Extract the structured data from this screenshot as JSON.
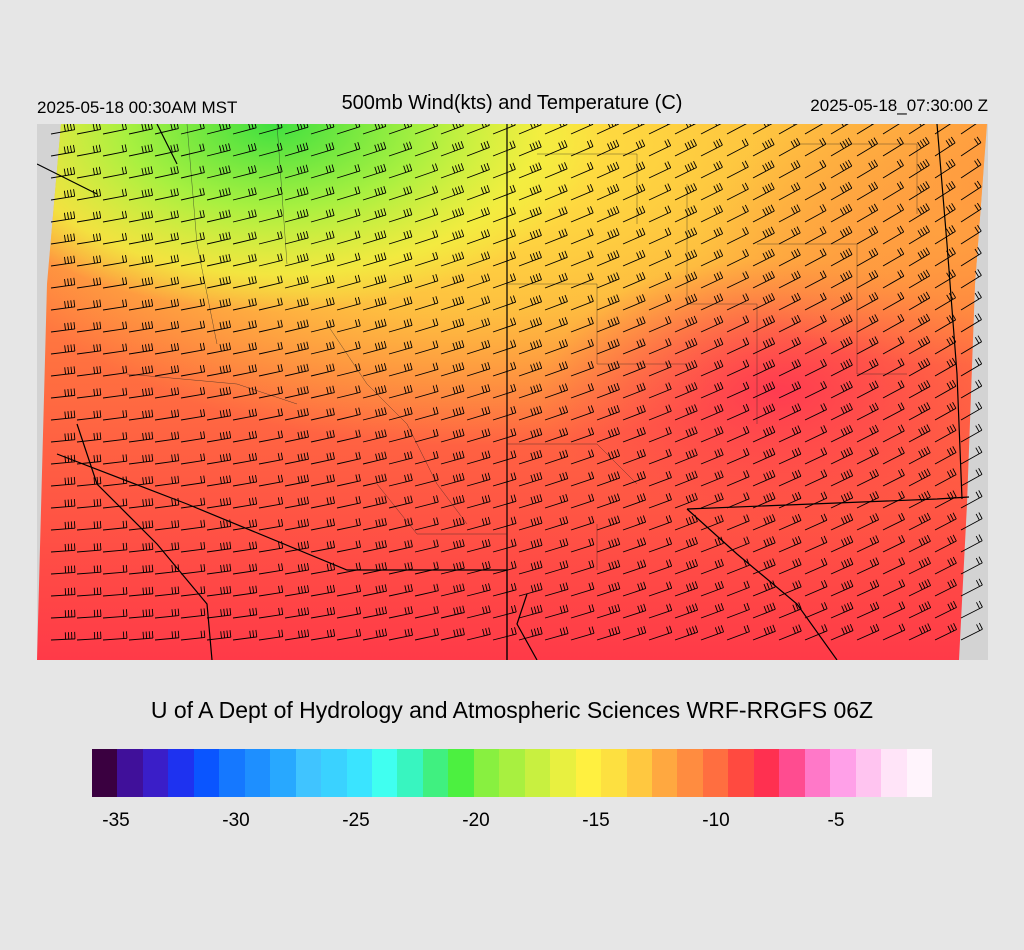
{
  "header": {
    "local_time": "2025-05-18 00:30AM MST",
    "title": "500mb Wind(kts) and Temperature (C)",
    "utc_time": "2025-05-18_07:30:00 Z"
  },
  "footer": {
    "credit": "U of A Dept of Hydrology and Atmospheric Sciences WRF-RRGFS 06Z"
  },
  "colorbar": {
    "colors": [
      "#3a0040",
      "#40109a",
      "#3a1ec8",
      "#1e32f0",
      "#0a55ff",
      "#1578ff",
      "#1e8fff",
      "#28a8ff",
      "#40c4ff",
      "#3ad2ff",
      "#3ae4ff",
      "#40fff0",
      "#38f5c0",
      "#40f080",
      "#4cf040",
      "#88f040",
      "#a8f040",
      "#c8f040",
      "#e8f040",
      "#fff040",
      "#fde040",
      "#ffc840",
      "#ffa840",
      "#ff8c40",
      "#ff6e40",
      "#ff4a40",
      "#ff3050",
      "#ff4c90",
      "#ff78c8",
      "#ffa0e8",
      "#ffc4f0",
      "#ffe4f8",
      "#fff4fc"
    ],
    "tick_labels": [
      "-35",
      "-30",
      "-25",
      "-20",
      "-15",
      "-10",
      "-5"
    ],
    "range": [
      -36,
      -1
    ],
    "ticks": [
      -35,
      -30,
      -25,
      -20,
      -15,
      -10,
      -5
    ]
  },
  "map": {
    "region": "Southwestern United States",
    "barb_color": "#000000",
    "background_color": "#d3d3d3"
  }
}
